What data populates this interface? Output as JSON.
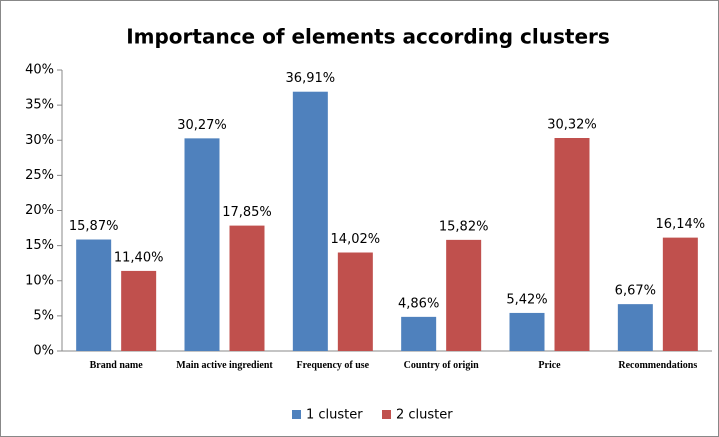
{
  "chart_data": {
    "type": "bar",
    "title": "Importance of elements according clusters",
    "categories": [
      "Brand name",
      "Main active ingredient",
      "Frequency of use",
      "Country of origin",
      "Price",
      "Recommendations"
    ],
    "series": [
      {
        "name": "1 cluster",
        "color": "#4f81bd",
        "values": [
          15.87,
          30.27,
          36.91,
          4.86,
          5.42,
          6.67
        ],
        "value_labels": [
          "15,87%",
          "30,27%",
          "36,91%",
          "4,86%",
          "5,42%",
          "6,67%"
        ]
      },
      {
        "name": "2 cluster",
        "color": "#c0504d",
        "values": [
          11.4,
          17.85,
          14.02,
          15.82,
          30.32,
          16.14
        ],
        "value_labels": [
          "11,40%",
          "17,85%",
          "14,02%",
          "15,82%",
          "30,32%",
          "16,14%"
        ]
      }
    ],
    "ylim": [
      0,
      40
    ],
    "yticks": [
      {
        "value": 0,
        "label": "0%"
      },
      {
        "value": 5,
        "label": "5%"
      },
      {
        "value": 10,
        "label": "10%"
      },
      {
        "value": 15,
        "label": "15%"
      },
      {
        "value": 20,
        "label": "20%"
      },
      {
        "value": 25,
        "label": "25%"
      },
      {
        "value": 30,
        "label": "30%"
      },
      {
        "value": 35,
        "label": "35%"
      },
      {
        "value": 40,
        "label": "40%"
      }
    ],
    "grid": false,
    "legend": "bottom"
  }
}
